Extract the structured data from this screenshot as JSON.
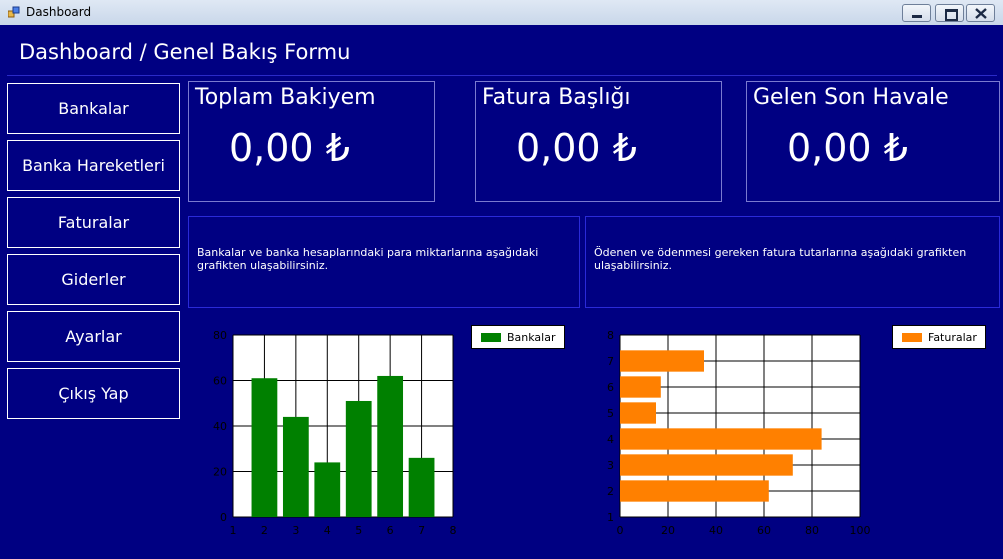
{
  "window": {
    "title": "Dashboard",
    "icon": "app-icon",
    "controls": [
      "minimize-icon",
      "restore-icon",
      "close-icon"
    ]
  },
  "header": {
    "title": "Dashboard / Genel Bakış Formu"
  },
  "nav": {
    "items": [
      {
        "label": "Bankalar"
      },
      {
        "label": "Banka Hareketleri"
      },
      {
        "label": "Faturalar"
      },
      {
        "label": "Giderler"
      },
      {
        "label": "Ayarlar"
      },
      {
        "label": "Çıkış Yap"
      }
    ]
  },
  "cards": [
    {
      "title": "Toplam Bakiyem",
      "value": "0,00 ₺"
    },
    {
      "title": "Fatura Başlığı",
      "value": "0,00 ₺"
    },
    {
      "title": "Gelen Son Havale",
      "value": "0,00 ₺"
    }
  ],
  "descriptions": {
    "left": "Bankalar ve banka hesaplarındaki para miktarlarına aşağıdaki grafikten ulaşabilirsiniz.",
    "right": "Ödenen ve ödenmesi gereken fatura tutarlarına aşağıdaki grafikten ulaşabilirsiniz."
  },
  "colors": {
    "background": "#000082",
    "bank_bar": "#008000",
    "invoice_bar": "#ff8000"
  },
  "chart_data": [
    {
      "type": "bar",
      "orientation": "vertical",
      "x": [
        2,
        3,
        4,
        5,
        6,
        7
      ],
      "xticks": [
        1,
        2,
        3,
        4,
        5,
        6,
        7,
        8
      ],
      "yticks": [
        0,
        20,
        40,
        60,
        80
      ],
      "xlim": [
        1,
        8
      ],
      "ylim": [
        0,
        80
      ],
      "series": [
        {
          "name": "Bankalar",
          "values": [
            61,
            44,
            24,
            51,
            62,
            26
          ]
        }
      ],
      "grid": true,
      "legend": "top-right"
    },
    {
      "type": "bar",
      "orientation": "horizontal",
      "y": [
        2,
        3,
        4,
        5,
        6,
        7
      ],
      "yticks": [
        1,
        2,
        3,
        4,
        5,
        6,
        7,
        8
      ],
      "xticks": [
        0,
        20,
        40,
        60,
        80,
        100
      ],
      "xlim": [
        0,
        100
      ],
      "ylim": [
        1,
        8
      ],
      "series": [
        {
          "name": "Faturalar",
          "values": [
            62,
            72,
            84,
            15,
            17,
            35
          ]
        }
      ],
      "grid": true,
      "legend": "top-right"
    }
  ]
}
